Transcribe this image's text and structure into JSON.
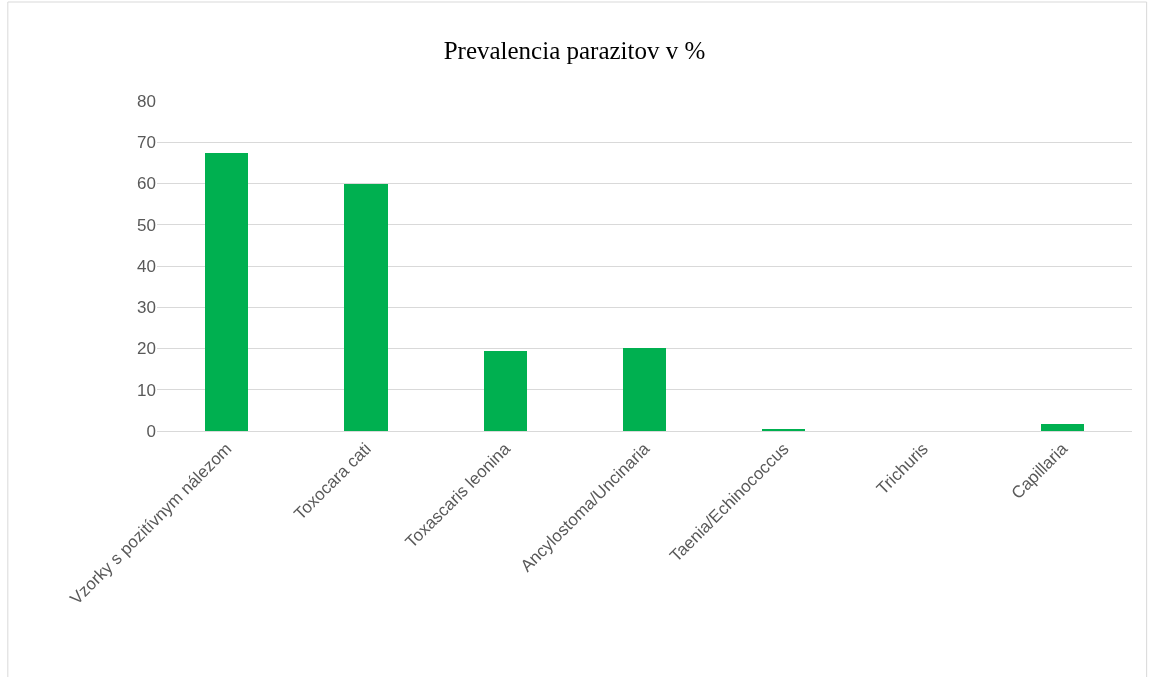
{
  "chart_data": {
    "type": "bar",
    "title": "Prevalencia parazitov v %",
    "categories": [
      "Vzorky s pozitívnym nálezom",
      "Toxocara cati",
      "Toxascaris leonina",
      "Ancylostoma/Uncinaria",
      "Taenia/Echinococcus",
      "Trichuris",
      "Capillaria"
    ],
    "values": [
      67.4,
      60,
      19.5,
      20.2,
      0.5,
      0,
      1.7
    ],
    "color": "#00b050",
    "ylim": [
      0,
      80
    ],
    "yticks": [
      0,
      10,
      20,
      30,
      40,
      50,
      60,
      70,
      80
    ],
    "grid": "y",
    "legend": false
  }
}
